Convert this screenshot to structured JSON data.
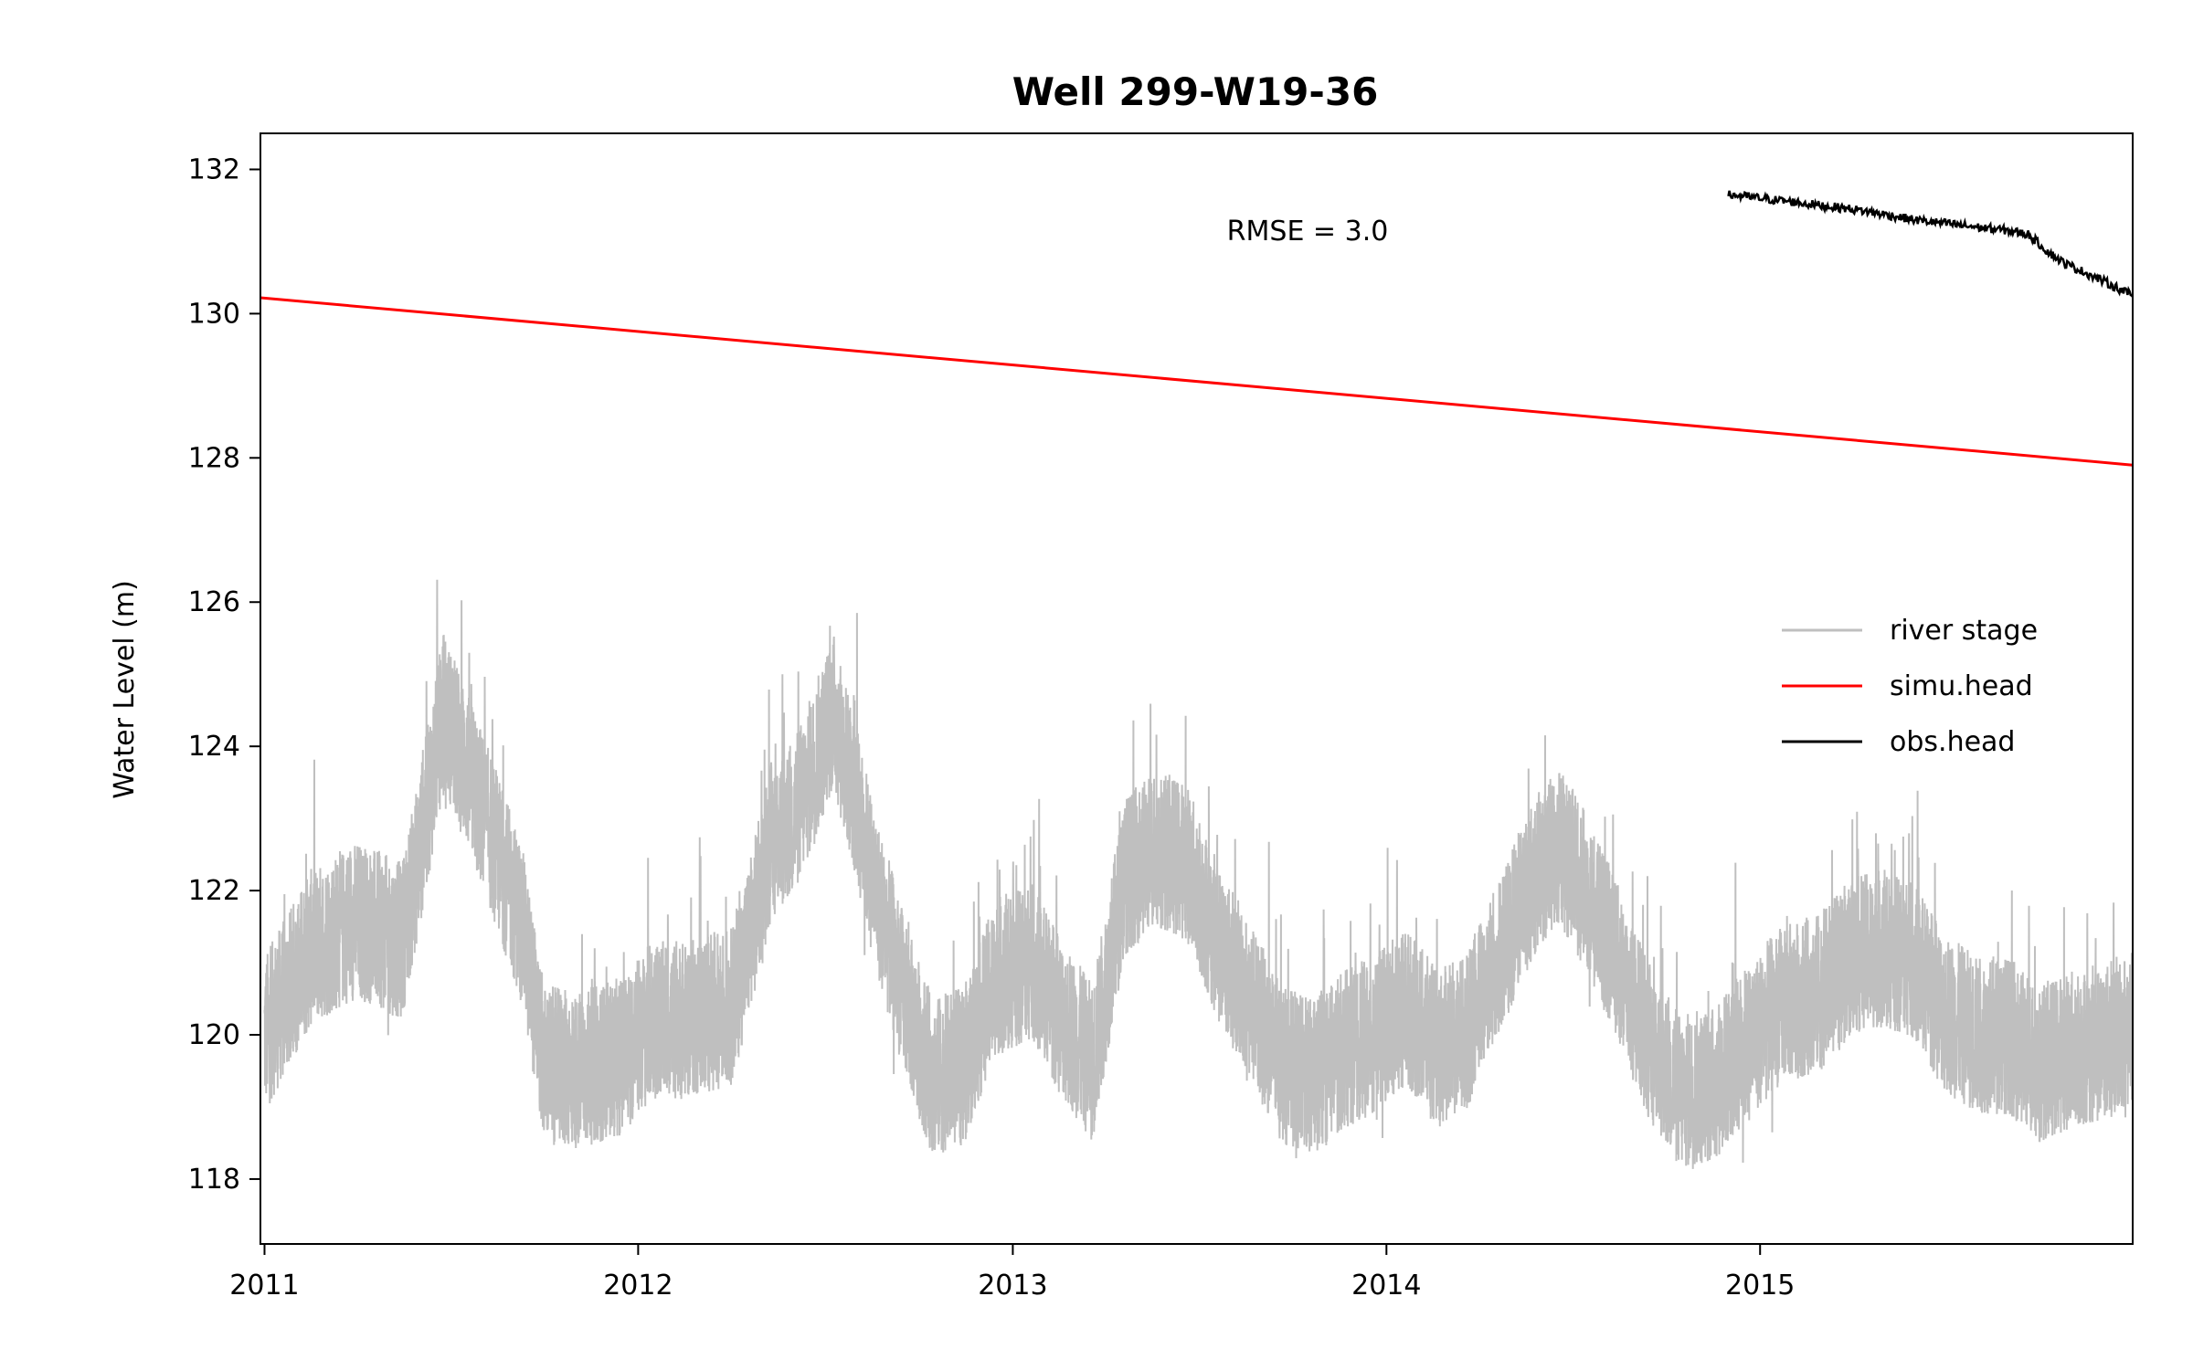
{
  "chart_data": {
    "type": "line",
    "title": "Well 299-W19-36",
    "xlabel": "",
    "ylabel": "Water Level (m)",
    "xlim": [
      "2010-12-28",
      "2015-12-31"
    ],
    "ylim": [
      117.1,
      132.5
    ],
    "x_ticks": [
      "2011",
      "2012",
      "2013",
      "2014",
      "2015"
    ],
    "y_ticks": [
      118,
      120,
      122,
      124,
      126,
      128,
      130,
      132
    ],
    "annotation": "RMSE = 3.0",
    "legend_position": "center-right",
    "grid": false,
    "series": [
      {
        "name": "river stage",
        "color": "#bfbfbf",
        "description_points": [
          [
            "2011-01-01",
            120.0
          ],
          [
            "2011-02-15",
            121.2
          ],
          [
            "2011-04-01",
            121.6
          ],
          [
            "2011-05-15",
            121.3
          ],
          [
            "2011-06-01",
            122.5
          ],
          [
            "2011-06-25",
            124.5
          ],
          [
            "2011-07-20",
            123.6
          ],
          [
            "2011-08-15",
            122.6
          ],
          [
            "2011-09-10",
            121.5
          ],
          [
            "2011-10-01",
            119.6
          ],
          [
            "2011-11-01",
            119.5
          ],
          [
            "2011-12-15",
            119.7
          ],
          [
            "2012-01-15",
            120.2
          ],
          [
            "2012-02-15",
            120.2
          ],
          [
            "2012-04-01",
            120.4
          ],
          [
            "2012-04-20",
            121.4
          ],
          [
            "2012-05-10",
            122.7
          ],
          [
            "2012-06-01",
            123.0
          ],
          [
            "2012-06-20",
            123.7
          ],
          [
            "2012-07-10",
            124.5
          ],
          [
            "2012-08-01",
            123.2
          ],
          [
            "2012-08-20",
            122.0
          ],
          [
            "2012-09-20",
            120.4
          ],
          [
            "2012-10-15",
            119.4
          ],
          [
            "2012-11-15",
            119.6
          ],
          [
            "2012-12-15",
            120.8
          ],
          [
            "2013-01-20",
            121.0
          ],
          [
            "2013-02-15",
            120.3
          ],
          [
            "2013-03-20",
            119.6
          ],
          [
            "2013-04-20",
            122.2
          ],
          [
            "2013-05-20",
            122.6
          ],
          [
            "2013-06-20",
            122.4
          ],
          [
            "2013-07-20",
            121.3
          ],
          [
            "2013-08-20",
            120.5
          ],
          [
            "2013-09-20",
            119.6
          ],
          [
            "2013-10-20",
            119.4
          ],
          [
            "2013-11-20",
            119.8
          ],
          [
            "2013-12-20",
            120.0
          ],
          [
            "2014-01-20",
            120.4
          ],
          [
            "2014-02-20",
            119.8
          ],
          [
            "2014-03-20",
            120.0
          ],
          [
            "2014-04-10",
            120.8
          ],
          [
            "2014-05-01",
            121.4
          ],
          [
            "2014-05-25",
            122.2
          ],
          [
            "2014-06-20",
            122.6
          ],
          [
            "2014-07-15",
            122.0
          ],
          [
            "2014-08-15",
            121.0
          ],
          [
            "2014-09-15",
            119.9
          ],
          [
            "2014-10-15",
            119.2
          ],
          [
            "2014-11-15",
            119.3
          ],
          [
            "2014-12-15",
            119.8
          ],
          [
            "2015-01-20",
            120.4
          ],
          [
            "2015-03-01",
            120.6
          ],
          [
            "2015-04-01",
            121.1
          ],
          [
            "2015-05-01",
            121.2
          ],
          [
            "2015-06-01",
            121.0
          ],
          [
            "2015-07-01",
            120.3
          ],
          [
            "2015-08-01",
            120.0
          ],
          [
            "2015-09-01",
            120.0
          ],
          [
            "2015-10-01",
            119.6
          ],
          [
            "2015-11-01",
            119.8
          ],
          [
            "2015-12-01",
            119.9
          ],
          [
            "2015-12-31",
            120.1
          ]
        ]
      },
      {
        "name": "simu.head",
        "color": "#ff0000",
        "points": [
          [
            "2010-12-28",
            130.22
          ],
          [
            "2015-12-31",
            127.9
          ]
        ]
      },
      {
        "name": "obs.head",
        "color": "#000000",
        "points": [
          [
            "2014-12-01",
            131.65
          ],
          [
            "2015-01-01",
            131.6
          ],
          [
            "2015-02-01",
            131.55
          ],
          [
            "2015-03-01",
            131.5
          ],
          [
            "2015-04-01",
            131.45
          ],
          [
            "2015-05-01",
            131.38
          ],
          [
            "2015-06-01",
            131.3
          ],
          [
            "2015-07-01",
            131.25
          ],
          [
            "2015-08-01",
            131.2
          ],
          [
            "2015-09-01",
            131.15
          ],
          [
            "2015-09-20",
            131.1
          ],
          [
            "2015-10-10",
            130.85
          ],
          [
            "2015-10-25",
            130.7
          ],
          [
            "2015-11-10",
            130.6
          ],
          [
            "2015-11-25",
            130.5
          ],
          [
            "2015-12-10",
            130.4
          ],
          [
            "2015-12-31",
            130.25
          ]
        ]
      }
    ]
  }
}
